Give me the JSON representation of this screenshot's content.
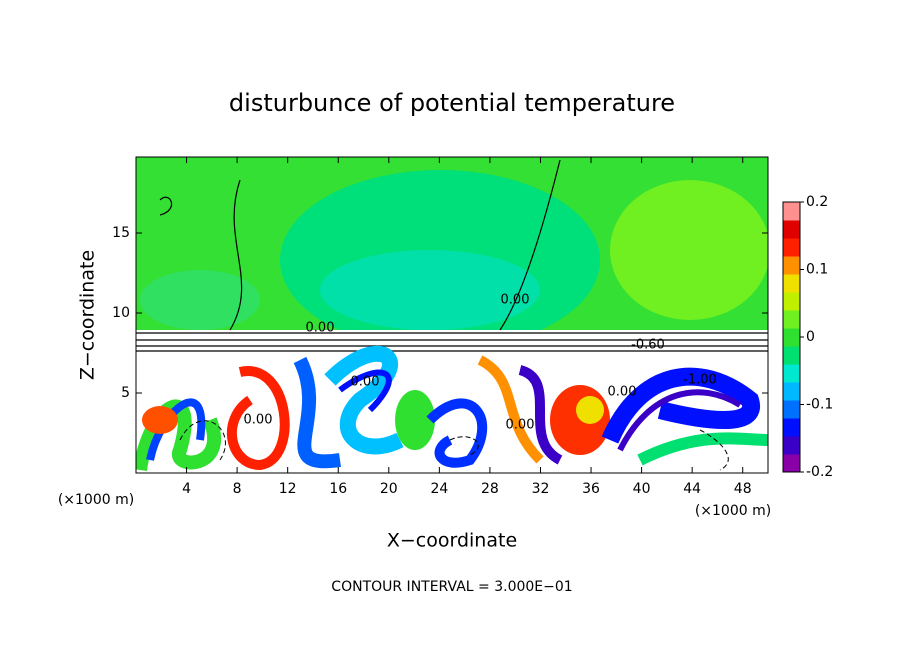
{
  "chart_data": {
    "type": "contour",
    "title": "disturbunce of potential temperature",
    "x_label": "X−coordinate",
    "y_label": "Z−coordinate",
    "x_unit_left": "(×1000 m)",
    "x_unit_right": "(×1000 m)",
    "footer": "CONTOUR INTERVAL = 3.000E−01",
    "xlim": [
      0,
      50
    ],
    "xticks": [
      4,
      8,
      12,
      16,
      20,
      24,
      28,
      32,
      36,
      40,
      44,
      48
    ],
    "ylim": [
      0,
      19.75
    ],
    "yticks": [
      5,
      10,
      15
    ],
    "contour_labels": [
      "0.00",
      "0.00",
      "0.00",
      "0.00",
      "0.00",
      "-0.60",
      "-1.00",
      "0.00"
    ],
    "colorbar": {
      "lim": [
        -0.2,
        0.2
      ],
      "ticks": [
        -0.2,
        -0.1,
        0,
        0.1,
        0.2
      ],
      "colors": [
        "#8a00a8",
        "#3a00c8",
        "#0010ff",
        "#0070ff",
        "#00b8ff",
        "#00e8d0",
        "#00e070",
        "#30e030",
        "#70f020",
        "#c0f000",
        "#f0e000",
        "#ff9000",
        "#ff2000",
        "#e00000",
        "#ff9090"
      ]
    }
  }
}
